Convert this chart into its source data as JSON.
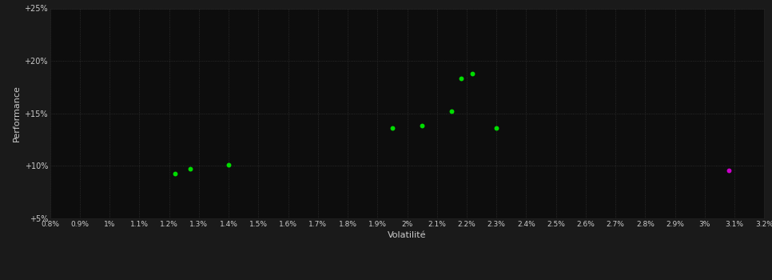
{
  "xlabel": "Volatilité",
  "ylabel": "Performance",
  "background_color": "#1a1a1a",
  "plot_bg_color": "#0d0d0d",
  "grid_color": "#333333",
  "text_color": "#cccccc",
  "xlim": [
    0.008,
    0.032
  ],
  "ylim": [
    0.05,
    0.25
  ],
  "xticks": [
    0.008,
    0.009,
    0.01,
    0.011,
    0.012,
    0.013,
    0.014,
    0.015,
    0.016,
    0.017,
    0.018,
    0.019,
    0.02,
    0.021,
    0.022,
    0.023,
    0.024,
    0.025,
    0.026,
    0.027,
    0.028,
    0.029,
    0.03,
    0.031,
    0.032
  ],
  "xtick_labels": [
    "0.8%",
    "0.9%",
    "1%",
    "1.1%",
    "1.2%",
    "1.3%",
    "1.4%",
    "1.5%",
    "1.6%",
    "1.7%",
    "1.8%",
    "1.9%",
    "2%",
    "2.1%",
    "2.2%",
    "2.3%",
    "2.4%",
    "2.5%",
    "2.6%",
    "2.7%",
    "2.8%",
    "2.9%",
    "3%",
    "3.1%",
    "3.2%"
  ],
  "yticks": [
    0.05,
    0.1,
    0.15,
    0.2,
    0.25
  ],
  "ytick_labels": [
    "+5%",
    "+10%",
    "+15%",
    "+20%",
    "+25%"
  ],
  "green_points": [
    [
      0.0122,
      0.093
    ],
    [
      0.0127,
      0.097
    ],
    [
      0.014,
      0.101
    ],
    [
      0.0195,
      0.136
    ],
    [
      0.0205,
      0.138
    ],
    [
      0.0215,
      0.152
    ],
    [
      0.0218,
      0.183
    ],
    [
      0.0222,
      0.188
    ],
    [
      0.023,
      0.136
    ]
  ],
  "magenta_points": [
    [
      0.0308,
      0.096
    ]
  ],
  "point_color_green": "#00dd00",
  "point_color_magenta": "#cc00cc",
  "marker_size": 18
}
